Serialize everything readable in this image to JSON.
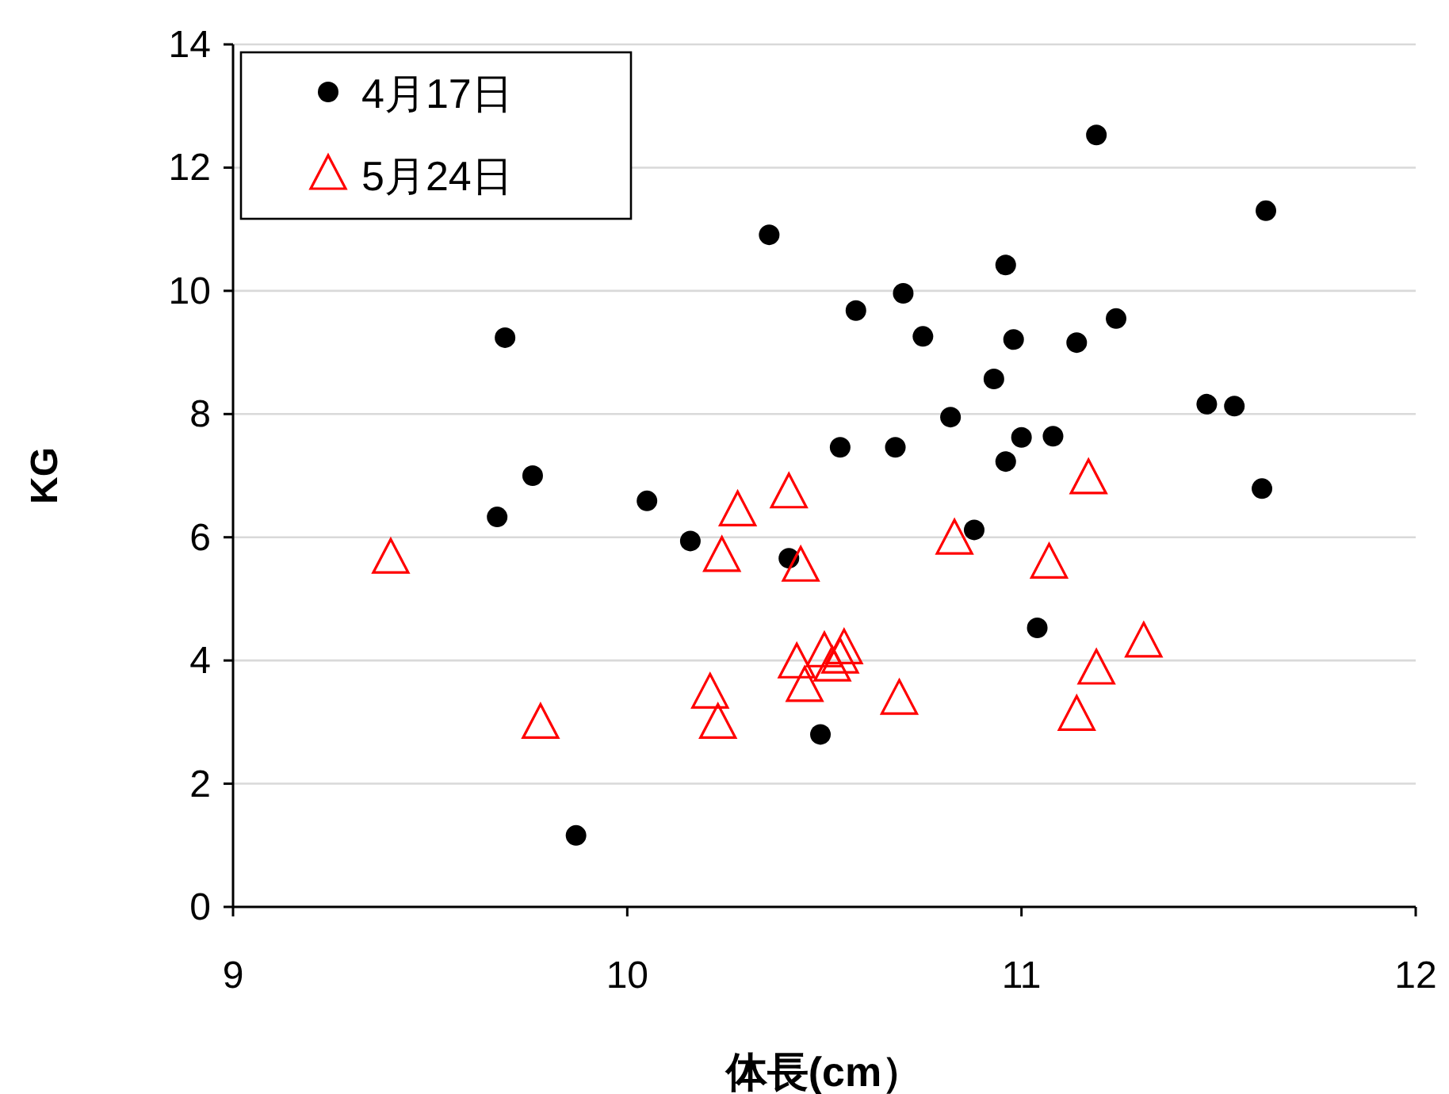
{
  "chart_data": {
    "type": "scatter",
    "xlabel": "体長(cm）",
    "ylabel": "KG",
    "xlim": [
      9,
      12
    ],
    "ylim": [
      0,
      14
    ],
    "xticks": [
      9,
      10,
      11,
      12
    ],
    "yticks": [
      0,
      2,
      4,
      6,
      8,
      10,
      12,
      14
    ],
    "grid": "y",
    "legend": "top left",
    "series": [
      {
        "name": "4月17日",
        "color": "#000000",
        "marker": "circle",
        "x": [
          9.69,
          9.67,
          9.76,
          9.87,
          10.05,
          10.16,
          10.36,
          10.41,
          10.49,
          10.54,
          10.58,
          10.68,
          10.7,
          10.75,
          10.82,
          10.88,
          10.93,
          10.96,
          10.96,
          10.98,
          11.0,
          11.04,
          11.08,
          11.14,
          11.19,
          11.24,
          11.47,
          11.54,
          11.61,
          11.62
        ],
        "values": [
          9.24,
          6.33,
          7.0,
          1.16,
          6.59,
          5.94,
          10.91,
          5.66,
          2.8,
          7.46,
          9.68,
          7.46,
          9.96,
          9.26,
          7.95,
          6.12,
          8.57,
          10.42,
          7.23,
          9.21,
          7.62,
          4.53,
          7.64,
          9.16,
          12.53,
          9.55,
          8.16,
          8.13,
          6.79,
          11.3
        ]
      },
      {
        "name": "5月24日",
        "color": "#ff0000",
        "marker": "triangle",
        "x": [
          9.4,
          9.78,
          10.21,
          10.23,
          10.24,
          10.28,
          10.41,
          10.43,
          10.44,
          10.45,
          10.5,
          10.52,
          10.54,
          10.55,
          10.69,
          10.83,
          11.07,
          11.17,
          11.14,
          11.19,
          11.31
        ],
        "values": [
          5.66,
          2.98,
          3.47,
          2.98,
          5.69,
          6.43,
          6.72,
          3.96,
          5.53,
          3.58,
          4.14,
          3.91,
          4.04,
          4.19,
          3.37,
          5.97,
          5.58,
          6.95,
          3.11,
          3.86,
          4.3
        ]
      }
    ]
  }
}
